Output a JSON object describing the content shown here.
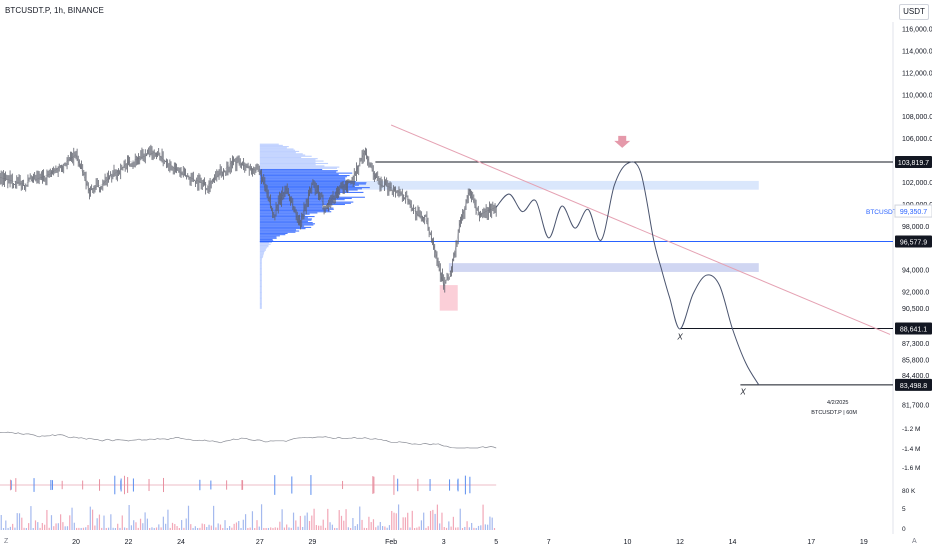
{
  "header": {
    "symbol_line": "BTCUSDT.P, 1h, BINANCE"
  },
  "axis_unit": "USDT",
  "corner_left": "Z",
  "corner_right": "A",
  "chart_data": {
    "type": "line",
    "symbol": "BTCUSDT.P",
    "timeframe": "1h",
    "exchange": "BINANCE",
    "y_ticks": [
      "116,000.0",
      "114,000.0",
      "112,000.0",
      "110,000.0",
      "108,000.0",
      "106,000.0",
      "102,000.0",
      "100,000.0",
      "98,000.0",
      "94,000.0",
      "92,000.0",
      "90,500.0",
      "87,300.0",
      "85,800.0",
      "84,400.0",
      "81,700.0"
    ],
    "y_tick_values": [
      116000,
      114000,
      112000,
      110000,
      108000,
      106000,
      102000,
      100000,
      98000,
      94000,
      92000,
      90500,
      87300,
      85800,
      84400,
      81700
    ],
    "x_ticks": [
      "20",
      "22",
      "24",
      "27",
      "29",
      "Feb",
      "3",
      "5",
      "7",
      "10",
      "12",
      "14",
      "17",
      "19"
    ],
    "x_tick_days": [
      20,
      22,
      24,
      27,
      29,
      32,
      34,
      36,
      38,
      41,
      43,
      45,
      48,
      50
    ],
    "price_x": [
      16,
      17,
      18,
      19,
      20,
      20.5,
      21,
      22,
      23,
      24,
      25,
      26,
      27,
      27.5,
      28,
      28.5,
      29,
      29.5,
      30,
      30.5,
      31,
      31.5,
      32,
      32.5,
      33,
      33.3,
      33.6,
      34,
      34.3,
      34.6,
      35,
      35.3,
      35.6,
      36
    ],
    "price_y": [
      103000,
      102500,
      101800,
      102700,
      104500,
      101200,
      101800,
      103800,
      104700,
      102800,
      101700,
      103900,
      102900,
      99000,
      101500,
      98200,
      101800,
      99700,
      101300,
      102100,
      104800,
      101800,
      101500,
      100800,
      99000,
      98700,
      96500,
      92500,
      94000,
      98000,
      101300,
      98900,
      99300,
      99700
    ],
    "projection_x": [
      36,
      36.5,
      37,
      37.5,
      38,
      38.5,
      39,
      39.5,
      40,
      40.5,
      41,
      41.5,
      42,
      42.3,
      42.6,
      43,
      43.5,
      44,
      44.5,
      45,
      45.5,
      46
    ],
    "projection_y": [
      99700,
      100900,
      99300,
      100300,
      96900,
      99800,
      97800,
      99500,
      96700,
      101700,
      103700,
      102900,
      96700,
      94000,
      91500,
      88600,
      91800,
      93500,
      92600,
      88600,
      85500,
      83500
    ],
    "volume_profile_poc": 101500,
    "value_area_high": 103200,
    "value_area_low": 96577.9,
    "horizontal_levels": [
      {
        "price": 103819.7,
        "label": "103,819.7"
      },
      {
        "price": 96577.9,
        "label": "96,577.9"
      },
      {
        "price": 88641.1,
        "label": "88,641.1"
      },
      {
        "price": 83498.8,
        "label": "83,498.8"
      }
    ],
    "zones": [
      {
        "from": 101300,
        "to": 102100,
        "color": "#d4e3fb"
      },
      {
        "from": 93800,
        "to": 94600,
        "color": "#c8cff0"
      }
    ],
    "current_price": {
      "label": "99,350.7",
      "symbol": "BTCUSDT.P"
    },
    "trendline": {
      "x": [
        32,
        51
      ],
      "y": [
        107200,
        88100
      ],
      "color": "#e5a2b3"
    },
    "markers": [
      {
        "text": "X",
        "x": 43,
        "price": 88000
      },
      {
        "text": "X",
        "x": 45.4,
        "price": 83000
      }
    ],
    "annotation": {
      "date": "4/2/2025",
      "text": "BTCUSDT.P | 60M"
    },
    "indicator1_ticks": [
      "-1.2 M",
      "-1.4 M",
      "-1.6 M"
    ],
    "indicator2_ticks": [
      "80 K"
    ],
    "volume_ticks": [
      "5",
      "0"
    ],
    "colors": {
      "price": "#5d606b",
      "projection": "#4b556f",
      "profile": "#2962ff",
      "level": "#131722",
      "arrow": "#e599aa",
      "highlight": "#f7a8b8"
    }
  }
}
